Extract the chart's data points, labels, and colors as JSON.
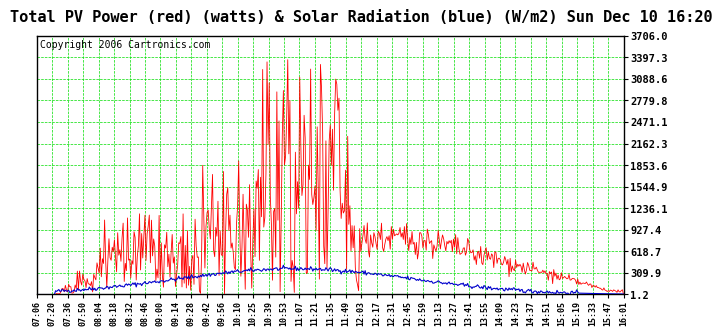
{
  "title": "Total PV Power (red) (watts) & Solar Radiation (blue) (W/m2) Sun Dec 10 16:20",
  "copyright": "Copyright 2006 Cartronics.com",
  "y_ticks": [
    1.2,
    309.9,
    618.7,
    927.4,
    1236.1,
    1544.9,
    1853.6,
    2162.3,
    2471.1,
    2779.8,
    3088.6,
    3397.3,
    3706.0
  ],
  "ylim": [
    1.2,
    3706.0
  ],
  "x_labels": [
    "07:06",
    "07:20",
    "07:36",
    "07:50",
    "08:04",
    "08:18",
    "08:32",
    "08:46",
    "09:00",
    "09:14",
    "09:28",
    "09:42",
    "09:56",
    "10:10",
    "10:25",
    "10:39",
    "10:53",
    "11:07",
    "11:21",
    "11:35",
    "11:49",
    "12:03",
    "12:17",
    "12:31",
    "12:45",
    "12:59",
    "13:13",
    "13:27",
    "13:41",
    "13:55",
    "14:09",
    "14:23",
    "14:37",
    "14:51",
    "15:05",
    "15:19",
    "15:33",
    "15:47",
    "16:01"
  ],
  "bg_color": "#ffffff",
  "grid_color": "#00dd00",
  "red_color": "#ff0000",
  "blue_color": "#0000cc",
  "title_fontsize": 11,
  "copyright_fontsize": 7,
  "n_points": 539
}
